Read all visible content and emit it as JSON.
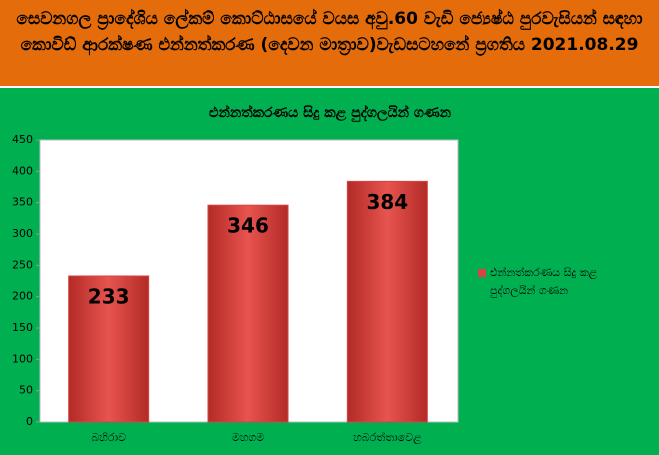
{
  "header": {
    "title": "සෙවනගල ප්‍රාදේශිය ලේකම් කොට්ඨාසයේ වයස අවු.60 වැඩි ජ්‍යෙෂ්ඨ පුරවැසියන් සඳහා කොවිඩ් ආරක්ෂණ එන්නත්කරණ (දෙවන මාත්‍රාව)වැඩසටහනේ ප්‍රගතිය 2021.08.29"
  },
  "chart_data": {
    "type": "bar",
    "title": "එන්නත්කරණය සිදු කළ පුද්ගලයින් ගණන",
    "categories": [
      "බහිරාව",
      "මහගම",
      "හබරත්තාවෙළ"
    ],
    "series": [
      {
        "name": "එන්නත්කරණය සිදු කළ පුද්ගලයින් ගණන",
        "color": "#d64541",
        "values": [
          233,
          346,
          384
        ]
      }
    ],
    "ylim": [
      0,
      450
    ],
    "yticks": [
      0,
      50,
      100,
      150,
      200,
      250,
      300,
      350,
      400,
      450
    ],
    "grid": false,
    "legend": "right"
  }
}
